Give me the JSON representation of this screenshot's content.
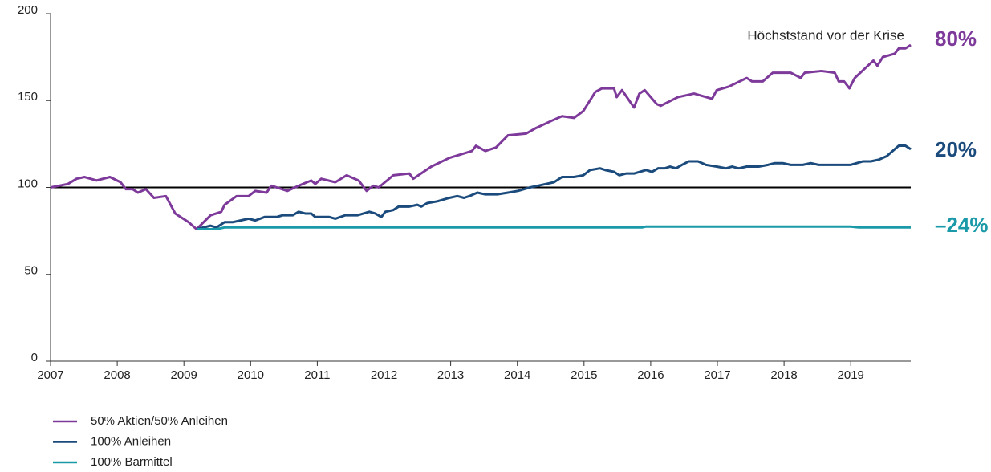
{
  "chart_data": {
    "type": "line",
    "annotation": "Höchststand vor der Krise",
    "xlim": [
      2007,
      2019.9
    ],
    "xticks": [
      2007,
      2008,
      2009,
      2010,
      2011,
      2012,
      2013,
      2014,
      2015,
      2016,
      2017,
      2018,
      2019
    ],
    "ylim": [
      0,
      200
    ],
    "yticks": [
      0,
      50,
      100,
      150,
      200
    ],
    "reference_line": 100,
    "reference_color": "#000000",
    "legend": "bottom-left",
    "series": [
      {
        "name": "50% Aktien/50% Anleihen",
        "color": "#7e3a9a",
        "end_label": "80%",
        "x": [
          2007.0,
          2007.26,
          2007.39,
          2007.51,
          2007.69,
          2007.89,
          2008.05,
          2008.13,
          2008.23,
          2008.31,
          2008.43,
          2008.55,
          2008.73,
          2008.87,
          2009.07,
          2009.19,
          2009.4,
          2009.56,
          2009.61,
          2009.79,
          2009.97,
          2010.07,
          2010.24,
          2010.31,
          2010.55,
          2010.72,
          2010.91,
          2010.97,
          2011.06,
          2011.27,
          2011.44,
          2011.62,
          2011.74,
          2011.84,
          2011.92,
          2012.14,
          2012.38,
          2012.44,
          2012.71,
          2012.98,
          2013.32,
          2013.38,
          2013.52,
          2013.68,
          2013.86,
          2014.13,
          2014.27,
          2014.55,
          2014.67,
          2014.85,
          2014.99,
          2015.17,
          2015.27,
          2015.45,
          2015.49,
          2015.57,
          2015.75,
          2015.83,
          2015.91,
          2016.09,
          2016.15,
          2016.41,
          2016.65,
          2016.92,
          2016.99,
          2017.17,
          2017.44,
          2017.52,
          2017.68,
          2017.83,
          2018.1,
          2018.25,
          2018.31,
          2018.56,
          2018.76,
          2018.82,
          2018.9,
          2018.98,
          2019.06,
          2019.34,
          2019.4,
          2019.48,
          2019.66,
          2019.72,
          2019.82,
          2019.9
        ],
        "values": [
          100,
          102,
          105,
          106,
          104,
          106,
          103,
          99,
          99,
          97,
          99,
          94,
          95,
          85,
          80,
          76,
          84,
          86,
          90,
          95,
          95,
          98,
          97,
          101,
          98,
          101,
          104,
          102,
          105,
          103,
          107,
          104,
          98,
          101,
          100,
          107,
          108,
          105,
          112,
          117,
          121,
          124,
          121,
          123,
          130,
          131,
          134,
          139,
          141,
          140,
          144,
          155,
          157,
          157,
          152,
          156,
          146,
          154,
          156,
          148,
          147,
          152,
          154,
          151,
          156,
          158,
          163,
          161,
          161,
          166,
          166,
          163,
          166,
          167,
          166,
          161,
          161,
          157,
          163,
          173,
          170,
          175,
          177,
          180,
          180,
          182
        ]
      },
      {
        "name": "100% Anleihen",
        "color": "#1b4b7c",
        "end_label": "20%",
        "x": [
          2009.19,
          2009.4,
          2009.49,
          2009.61,
          2009.73,
          2009.85,
          2009.97,
          2010.07,
          2010.21,
          2010.39,
          2010.48,
          2010.63,
          2010.72,
          2010.82,
          2010.91,
          2010.97,
          2011.18,
          2011.27,
          2011.42,
          2011.6,
          2011.78,
          2011.87,
          2011.96,
          2012.02,
          2012.14,
          2012.22,
          2012.38,
          2012.5,
          2012.56,
          2012.65,
          2012.8,
          2012.98,
          2013.1,
          2013.2,
          2013.28,
          2013.4,
          2013.52,
          2013.62,
          2013.7,
          2013.86,
          2014.01,
          2014.19,
          2014.31,
          2014.43,
          2014.55,
          2014.67,
          2014.85,
          2014.99,
          2015.09,
          2015.24,
          2015.32,
          2015.45,
          2015.53,
          2015.63,
          2015.75,
          2015.93,
          2016.02,
          2016.11,
          2016.21,
          2016.29,
          2016.38,
          2016.47,
          2016.57,
          2016.71,
          2016.83,
          2016.99,
          2017.13,
          2017.22,
          2017.32,
          2017.44,
          2017.62,
          2017.76,
          2017.86,
          2017.98,
          2018.1,
          2018.28,
          2018.4,
          2018.52,
          2019.0,
          2019.18,
          2019.3,
          2019.42,
          2019.54,
          2019.72,
          2019.82,
          2019.9
        ],
        "values": [
          76,
          78,
          77,
          80,
          80,
          81,
          82,
          81,
          83,
          83,
          84,
          84,
          86,
          85,
          85,
          83,
          83,
          82,
          84,
          84,
          86,
          85,
          83,
          86,
          87,
          89,
          89,
          90,
          89,
          91,
          92,
          94,
          95,
          94,
          95,
          97,
          96,
          96,
          96,
          97,
          98,
          100,
          101,
          102,
          103,
          106,
          106,
          107,
          110,
          111,
          110,
          109,
          107,
          108,
          108,
          110,
          109,
          111,
          111,
          112,
          111,
          113,
          115,
          115,
          113,
          112,
          111,
          112,
          111,
          112,
          112,
          113,
          114,
          114,
          113,
          113,
          114,
          113,
          113,
          115,
          115,
          116,
          118,
          124,
          124,
          122
        ]
      },
      {
        "name": "100% Barmittel",
        "color": "#1a9aa8",
        "end_label": "–24%",
        "x": [
          2009.19,
          2009.49,
          2009.61,
          2015.87,
          2015.93,
          2019.0,
          2019.12,
          2019.9
        ],
        "values": [
          76,
          76,
          77,
          77,
          77.5,
          77.5,
          77,
          77
        ]
      }
    ]
  }
}
